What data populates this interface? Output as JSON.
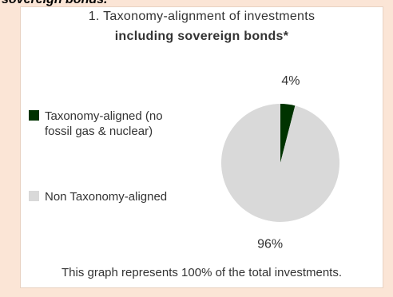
{
  "heading": "sovereign bonds.",
  "chart_data": {
    "type": "pie",
    "title": "1. Taxonomy-alignment  of investments",
    "subtitle": "including sovereign bonds*",
    "categories": [
      "Taxonomy-aligned (no fossil gas & nuclear)",
      "Non Taxonomy-aligned"
    ],
    "values": [
      4,
      96
    ],
    "value_labels": [
      "4%",
      "96%"
    ],
    "colors": [
      "#003300",
      "#d9d9d9"
    ],
    "footnote": "This graph represents 100% of the total investments."
  }
}
